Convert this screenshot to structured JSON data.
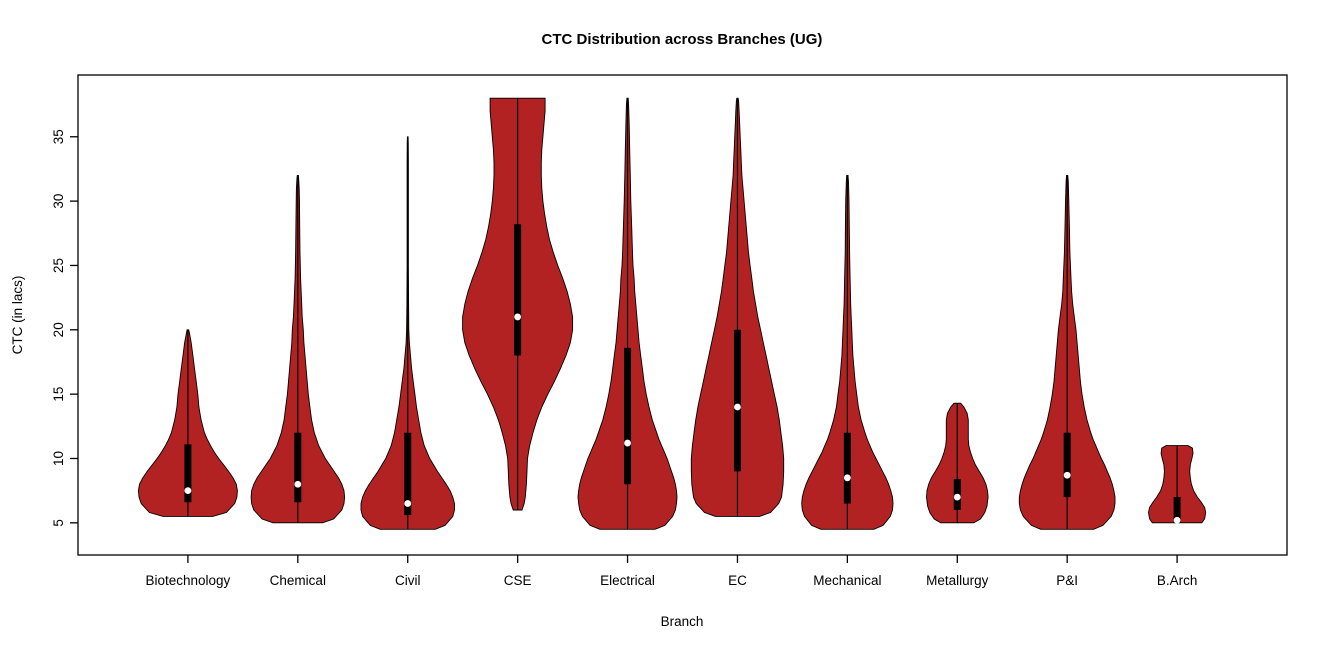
{
  "figure": {
    "title": "CTC Distribution across Branches (UG)",
    "xlabel": "Branch",
    "ylabel": "CTC (in lacs)"
  },
  "chart_data": {
    "type": "violin",
    "title": "CTC Distribution across Branches (UG)",
    "xlabel": "Branch",
    "ylabel": "CTC (in lacs)",
    "ylim": [
      2.5,
      39.8
    ],
    "yticks": [
      5,
      10,
      15,
      20,
      25,
      30,
      35
    ],
    "grid": false,
    "legend": "none",
    "violin_fill": "#B22222",
    "violin_border": "#000000",
    "box_color": "#000000",
    "median_color": "#ffffff",
    "categories": [
      "Biotechnology",
      "Chemical",
      "Civil",
      "CSE",
      "Electrical",
      "EC",
      "Mechanical",
      "Metallurgy",
      "P&I",
      "B.Arch"
    ],
    "series": [
      {
        "name": "Biotechnology",
        "min": 5.5,
        "max": 20,
        "q1": 6.6,
        "q3": 11.1,
        "median": 7.5,
        "shape": [
          [
            5.5,
            0.45
          ],
          [
            5.8,
            0.7
          ],
          [
            6.5,
            0.85
          ],
          [
            7,
            0.89
          ],
          [
            7.5,
            0.9
          ],
          [
            8,
            0.88
          ],
          [
            8.5,
            0.82
          ],
          [
            9,
            0.74
          ],
          [
            9.5,
            0.65
          ],
          [
            10,
            0.56
          ],
          [
            10.5,
            0.48
          ],
          [
            11,
            0.41
          ],
          [
            11.5,
            0.35
          ],
          [
            12,
            0.3
          ],
          [
            13,
            0.24
          ],
          [
            14,
            0.2
          ],
          [
            15,
            0.18
          ],
          [
            16,
            0.15
          ],
          [
            17,
            0.12
          ],
          [
            18,
            0.09
          ],
          [
            19,
            0.06
          ],
          [
            19.7,
            0.03
          ],
          [
            20,
            0.015
          ]
        ]
      },
      {
        "name": "Chemical",
        "min": 5,
        "max": 32,
        "q1": 6.6,
        "q3": 12,
        "median": 8,
        "shape": [
          [
            5,
            0.45
          ],
          [
            5.3,
            0.65
          ],
          [
            6,
            0.8
          ],
          [
            6.5,
            0.84
          ],
          [
            7,
            0.85
          ],
          [
            7.5,
            0.84
          ],
          [
            8,
            0.8
          ],
          [
            8.5,
            0.74
          ],
          [
            9,
            0.66
          ],
          [
            9.5,
            0.58
          ],
          [
            10,
            0.5
          ],
          [
            10.5,
            0.44
          ],
          [
            11,
            0.38
          ],
          [
            12,
            0.3
          ],
          [
            13,
            0.25
          ],
          [
            14,
            0.22
          ],
          [
            15,
            0.19
          ],
          [
            16,
            0.17
          ],
          [
            17,
            0.15
          ],
          [
            18,
            0.13
          ],
          [
            19,
            0.11
          ],
          [
            20,
            0.1
          ],
          [
            21,
            0.08
          ],
          [
            22,
            0.07
          ],
          [
            24,
            0.05
          ],
          [
            26,
            0.04
          ],
          [
            28,
            0.035
          ],
          [
            30,
            0.03
          ],
          [
            31,
            0.025
          ],
          [
            31.8,
            0.015
          ],
          [
            32,
            0.01
          ]
        ]
      },
      {
        "name": "Civil",
        "min": 4.5,
        "max": 35,
        "q1": 5.6,
        "q3": 12,
        "median": 6.5,
        "shape": [
          [
            4.5,
            0.5
          ],
          [
            4.8,
            0.68
          ],
          [
            5.5,
            0.82
          ],
          [
            6,
            0.85
          ],
          [
            6.5,
            0.85
          ],
          [
            7,
            0.82
          ],
          [
            7.5,
            0.77
          ],
          [
            8,
            0.7
          ],
          [
            8.5,
            0.62
          ],
          [
            9,
            0.54
          ],
          [
            9.5,
            0.47
          ],
          [
            10,
            0.4
          ],
          [
            10.5,
            0.35
          ],
          [
            11,
            0.3
          ],
          [
            12,
            0.24
          ],
          [
            13,
            0.2
          ],
          [
            14,
            0.16
          ],
          [
            15,
            0.13
          ],
          [
            16,
            0.1
          ],
          [
            17,
            0.07
          ],
          [
            18,
            0.05
          ],
          [
            19,
            0.03
          ],
          [
            20,
            0.02
          ],
          [
            22,
            0.015
          ],
          [
            25,
            0.012
          ],
          [
            28,
            0.012
          ],
          [
            31,
            0.012
          ],
          [
            33,
            0.012
          ],
          [
            34.5,
            0.01
          ],
          [
            35,
            0.006
          ]
        ]
      },
      {
        "name": "CSE",
        "min": 6,
        "max": 38,
        "q1": 18,
        "q3": 28.2,
        "median": 21,
        "shape": [
          [
            6,
            0.08
          ],
          [
            6.5,
            0.12
          ],
          [
            7,
            0.14
          ],
          [
            8,
            0.16
          ],
          [
            9,
            0.17
          ],
          [
            10,
            0.18
          ],
          [
            11,
            0.22
          ],
          [
            12,
            0.28
          ],
          [
            13,
            0.35
          ],
          [
            14,
            0.44
          ],
          [
            15,
            0.55
          ],
          [
            16,
            0.67
          ],
          [
            17,
            0.78
          ],
          [
            18,
            0.88
          ],
          [
            19,
            0.96
          ],
          [
            20,
            1.0
          ],
          [
            21,
            1.0
          ],
          [
            22,
            0.96
          ],
          [
            23,
            0.9
          ],
          [
            24,
            0.82
          ],
          [
            25,
            0.73
          ],
          [
            26,
            0.65
          ],
          [
            27,
            0.58
          ],
          [
            28,
            0.53
          ],
          [
            29,
            0.49
          ],
          [
            30,
            0.46
          ],
          [
            31,
            0.44
          ],
          [
            32,
            0.43
          ],
          [
            33,
            0.43
          ],
          [
            34,
            0.44
          ],
          [
            35,
            0.46
          ],
          [
            36,
            0.48
          ],
          [
            37,
            0.5
          ],
          [
            37.8,
            0.5
          ],
          [
            38,
            0.5
          ]
        ]
      },
      {
        "name": "Electrical",
        "min": 4.5,
        "max": 38,
        "q1": 8,
        "q3": 18.6,
        "median": 11.2,
        "shape": [
          [
            4.5,
            0.5
          ],
          [
            4.8,
            0.68
          ],
          [
            5.5,
            0.82
          ],
          [
            6,
            0.87
          ],
          [
            6.5,
            0.89
          ],
          [
            7,
            0.9
          ],
          [
            7.5,
            0.89
          ],
          [
            8,
            0.87
          ],
          [
            8.5,
            0.84
          ],
          [
            9,
            0.8
          ],
          [
            9.5,
            0.76
          ],
          [
            10,
            0.72
          ],
          [
            10.5,
            0.67
          ],
          [
            11,
            0.62
          ],
          [
            11.5,
            0.57
          ],
          [
            12,
            0.53
          ],
          [
            13,
            0.45
          ],
          [
            14,
            0.39
          ],
          [
            15,
            0.34
          ],
          [
            16,
            0.3
          ],
          [
            17,
            0.27
          ],
          [
            18,
            0.24
          ],
          [
            19,
            0.21
          ],
          [
            20,
            0.19
          ],
          [
            21,
            0.17
          ],
          [
            22,
            0.15
          ],
          [
            23,
            0.13
          ],
          [
            24,
            0.12
          ],
          [
            25,
            0.1
          ],
          [
            26,
            0.09
          ],
          [
            28,
            0.075
          ],
          [
            30,
            0.06
          ],
          [
            32,
            0.05
          ],
          [
            34,
            0.04
          ],
          [
            36,
            0.03
          ],
          [
            37.5,
            0.02
          ],
          [
            38,
            0.012
          ]
        ]
      },
      {
        "name": "EC",
        "min": 5.5,
        "max": 38,
        "q1": 9,
        "q3": 20,
        "median": 14,
        "shape": [
          [
            5.5,
            0.4
          ],
          [
            5.8,
            0.6
          ],
          [
            6.5,
            0.75
          ],
          [
            7,
            0.8
          ],
          [
            8,
            0.83
          ],
          [
            9,
            0.84
          ],
          [
            10,
            0.84
          ],
          [
            11,
            0.82
          ],
          [
            12,
            0.79
          ],
          [
            13,
            0.76
          ],
          [
            14,
            0.72
          ],
          [
            15,
            0.67
          ],
          [
            16,
            0.62
          ],
          [
            17,
            0.57
          ],
          [
            18,
            0.52
          ],
          [
            19,
            0.47
          ],
          [
            20,
            0.42
          ],
          [
            21,
            0.37
          ],
          [
            22,
            0.33
          ],
          [
            23,
            0.29
          ],
          [
            24,
            0.26
          ],
          [
            25,
            0.23
          ],
          [
            26,
            0.2
          ],
          [
            27,
            0.18
          ],
          [
            28,
            0.16
          ],
          [
            29,
            0.14
          ],
          [
            30,
            0.12
          ],
          [
            31,
            0.1
          ],
          [
            32,
            0.08
          ],
          [
            33,
            0.07
          ],
          [
            34,
            0.06
          ],
          [
            35,
            0.05
          ],
          [
            36,
            0.04
          ],
          [
            37,
            0.03
          ],
          [
            37.8,
            0.02
          ],
          [
            38,
            0.012
          ]
        ]
      },
      {
        "name": "Mechanical",
        "min": 4.5,
        "max": 32,
        "q1": 6.5,
        "q3": 12,
        "median": 8.5,
        "shape": [
          [
            4.5,
            0.48
          ],
          [
            4.8,
            0.65
          ],
          [
            5.5,
            0.78
          ],
          [
            6,
            0.82
          ],
          [
            6.5,
            0.83
          ],
          [
            7,
            0.82
          ],
          [
            7.5,
            0.79
          ],
          [
            8,
            0.75
          ],
          [
            8.5,
            0.7
          ],
          [
            9,
            0.64
          ],
          [
            9.5,
            0.58
          ],
          [
            10,
            0.52
          ],
          [
            10.5,
            0.46
          ],
          [
            11,
            0.41
          ],
          [
            11.5,
            0.36
          ],
          [
            12,
            0.32
          ],
          [
            13,
            0.25
          ],
          [
            14,
            0.2
          ],
          [
            15,
            0.17
          ],
          [
            16,
            0.14
          ],
          [
            17,
            0.12
          ],
          [
            18,
            0.1
          ],
          [
            19,
            0.09
          ],
          [
            20,
            0.08
          ],
          [
            21,
            0.07
          ],
          [
            22,
            0.06
          ],
          [
            24,
            0.05
          ],
          [
            26,
            0.04
          ],
          [
            28,
            0.035
          ],
          [
            30,
            0.03
          ],
          [
            31.5,
            0.02
          ],
          [
            32,
            0.012
          ]
        ]
      },
      {
        "name": "Metallurgy",
        "min": 5,
        "max": 14.3,
        "q1": 6,
        "q3": 8.4,
        "median": 7,
        "shape": [
          [
            5,
            0.3
          ],
          [
            5.3,
            0.42
          ],
          [
            5.8,
            0.5
          ],
          [
            6.3,
            0.54
          ],
          [
            7,
            0.56
          ],
          [
            7.5,
            0.55
          ],
          [
            8,
            0.52
          ],
          [
            8.5,
            0.47
          ],
          [
            9,
            0.4
          ],
          [
            9.5,
            0.33
          ],
          [
            10,
            0.28
          ],
          [
            10.5,
            0.24
          ],
          [
            11,
            0.21
          ],
          [
            11.5,
            0.2
          ],
          [
            12,
            0.2
          ],
          [
            12.5,
            0.2
          ],
          [
            13,
            0.2
          ],
          [
            13.5,
            0.18
          ],
          [
            14,
            0.12
          ],
          [
            14.3,
            0.06
          ]
        ]
      },
      {
        "name": "P&I",
        "min": 4.5,
        "max": 32,
        "q1": 7,
        "q3": 12,
        "median": 8.7,
        "shape": [
          [
            4.5,
            0.48
          ],
          [
            4.8,
            0.65
          ],
          [
            5.5,
            0.8
          ],
          [
            6,
            0.85
          ],
          [
            6.5,
            0.87
          ],
          [
            7,
            0.87
          ],
          [
            7.5,
            0.85
          ],
          [
            8,
            0.82
          ],
          [
            8.5,
            0.78
          ],
          [
            9,
            0.73
          ],
          [
            9.5,
            0.68
          ],
          [
            10,
            0.62
          ],
          [
            10.5,
            0.57
          ],
          [
            11,
            0.52
          ],
          [
            11.5,
            0.47
          ],
          [
            12,
            0.43
          ],
          [
            13,
            0.36
          ],
          [
            14,
            0.31
          ],
          [
            15,
            0.27
          ],
          [
            16,
            0.24
          ],
          [
            17,
            0.22
          ],
          [
            18,
            0.2
          ],
          [
            19,
            0.18
          ],
          [
            20,
            0.16
          ],
          [
            21,
            0.13
          ],
          [
            22,
            0.1
          ],
          [
            23,
            0.08
          ],
          [
            24,
            0.07
          ],
          [
            26,
            0.05
          ],
          [
            28,
            0.04
          ],
          [
            30,
            0.03
          ],
          [
            31.5,
            0.02
          ],
          [
            32,
            0.012
          ]
        ]
      },
      {
        "name": "B.Arch",
        "min": 5,
        "max": 11,
        "q1": 5,
        "q3": 7,
        "median": 5.2,
        "shape": [
          [
            5,
            0.45
          ],
          [
            5.3,
            0.5
          ],
          [
            5.8,
            0.52
          ],
          [
            6.2,
            0.5
          ],
          [
            6.6,
            0.44
          ],
          [
            7,
            0.37
          ],
          [
            7.5,
            0.3
          ],
          [
            8,
            0.26
          ],
          [
            8.5,
            0.24
          ],
          [
            9,
            0.23
          ],
          [
            9.5,
            0.24
          ],
          [
            10,
            0.27
          ],
          [
            10.4,
            0.29
          ],
          [
            10.8,
            0.28
          ],
          [
            11,
            0.2
          ]
        ]
      }
    ]
  }
}
